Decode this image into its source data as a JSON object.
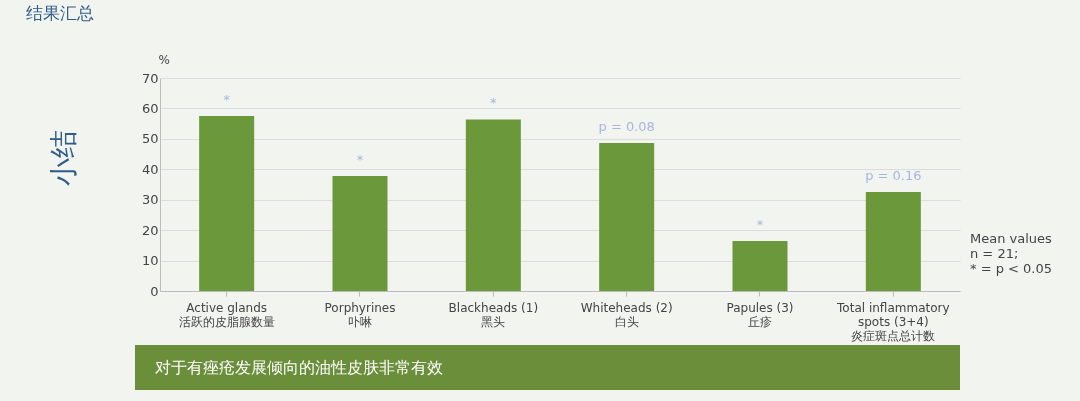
{
  "chart_data": {
    "type": "bar",
    "title": "结果汇总",
    "ylabel": "%",
    "categories": [
      "Active glands\n活跃的皮脂腺数量",
      "Porphyrines\n卟啉",
      "Blackheads (1)\n黑头",
      "Whiteheads (2)\n白头",
      "Papules (3)\n丘疹",
      "Total inflammatory\nspots (3+4)\n炎症斑点总计数"
    ],
    "values": [
      57.5,
      37.8,
      56.4,
      48.6,
      16.4,
      32.5
    ],
    "color": "#6a983a",
    "ylim": [
      0,
      70
    ],
    "yticks": [
      0,
      10,
      20,
      30,
      40,
      50,
      60,
      70
    ],
    "grid": "y",
    "annotations": [
      "小结",
      "对于有痤疮发展倾向的油性皮肤非常有效",
      "Mean values\nn = 21;\n\n* = p < 0.05",
      {
        "text": "*",
        "x": "Active glands\n活跃的皮脂腺数量",
        "y": 57.5
      },
      {
        "text": "*",
        "x": "Porphyrines\n卟啉",
        "y": 37.8
      },
      {
        "text": "*",
        "x": "Blackheads (1)\n黑头",
        "y": 56.4
      },
      {
        "text": "p = 0.08",
        "x": "Whiteheads (2)\n白头",
        "y": 48.6
      },
      {
        "text": "*",
        "x": "Papules (3)\n丘疹",
        "y": 16.4
      },
      {
        "text": "p = 0.16",
        "x": "Total inflammatory\nspots (3+4)\n炎症斑点总计数",
        "y": 32.5
      }
    ]
  }
}
